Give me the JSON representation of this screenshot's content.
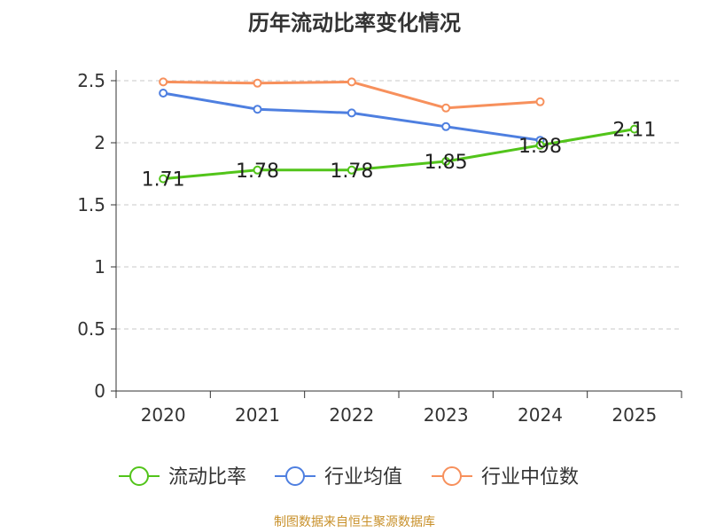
{
  "chart_data": {
    "type": "line",
    "title": "历年流动比率变化情况",
    "categories": [
      "2020",
      "2021",
      "2022",
      "2023",
      "2024",
      "2025"
    ],
    "ylim": [
      0,
      2.5
    ],
    "yticks": [
      "0",
      "0.5",
      "1",
      "1.5",
      "2",
      "2.5"
    ],
    "ytick_values": [
      0,
      0.5,
      1,
      1.5,
      2,
      2.5
    ],
    "grid": true,
    "legend_position": "bottom",
    "series": [
      {
        "name": "流动比率",
        "color": "#52c41a",
        "values": [
          1.71,
          1.78,
          1.78,
          1.85,
          1.98,
          2.11
        ],
        "labels": [
          "1.71",
          "1.78",
          "1.78",
          "1.85",
          "1.98",
          "2.11"
        ]
      },
      {
        "name": "行业均值",
        "color": "#4e7fe0",
        "values": [
          2.4,
          2.27,
          2.24,
          2.13,
          2.02,
          null
        ]
      },
      {
        "name": "行业中位数",
        "color": "#f7905c",
        "values": [
          2.49,
          2.48,
          2.49,
          2.28,
          2.33,
          null
        ]
      }
    ]
  },
  "source": "制图数据来自恒生聚源数据库"
}
